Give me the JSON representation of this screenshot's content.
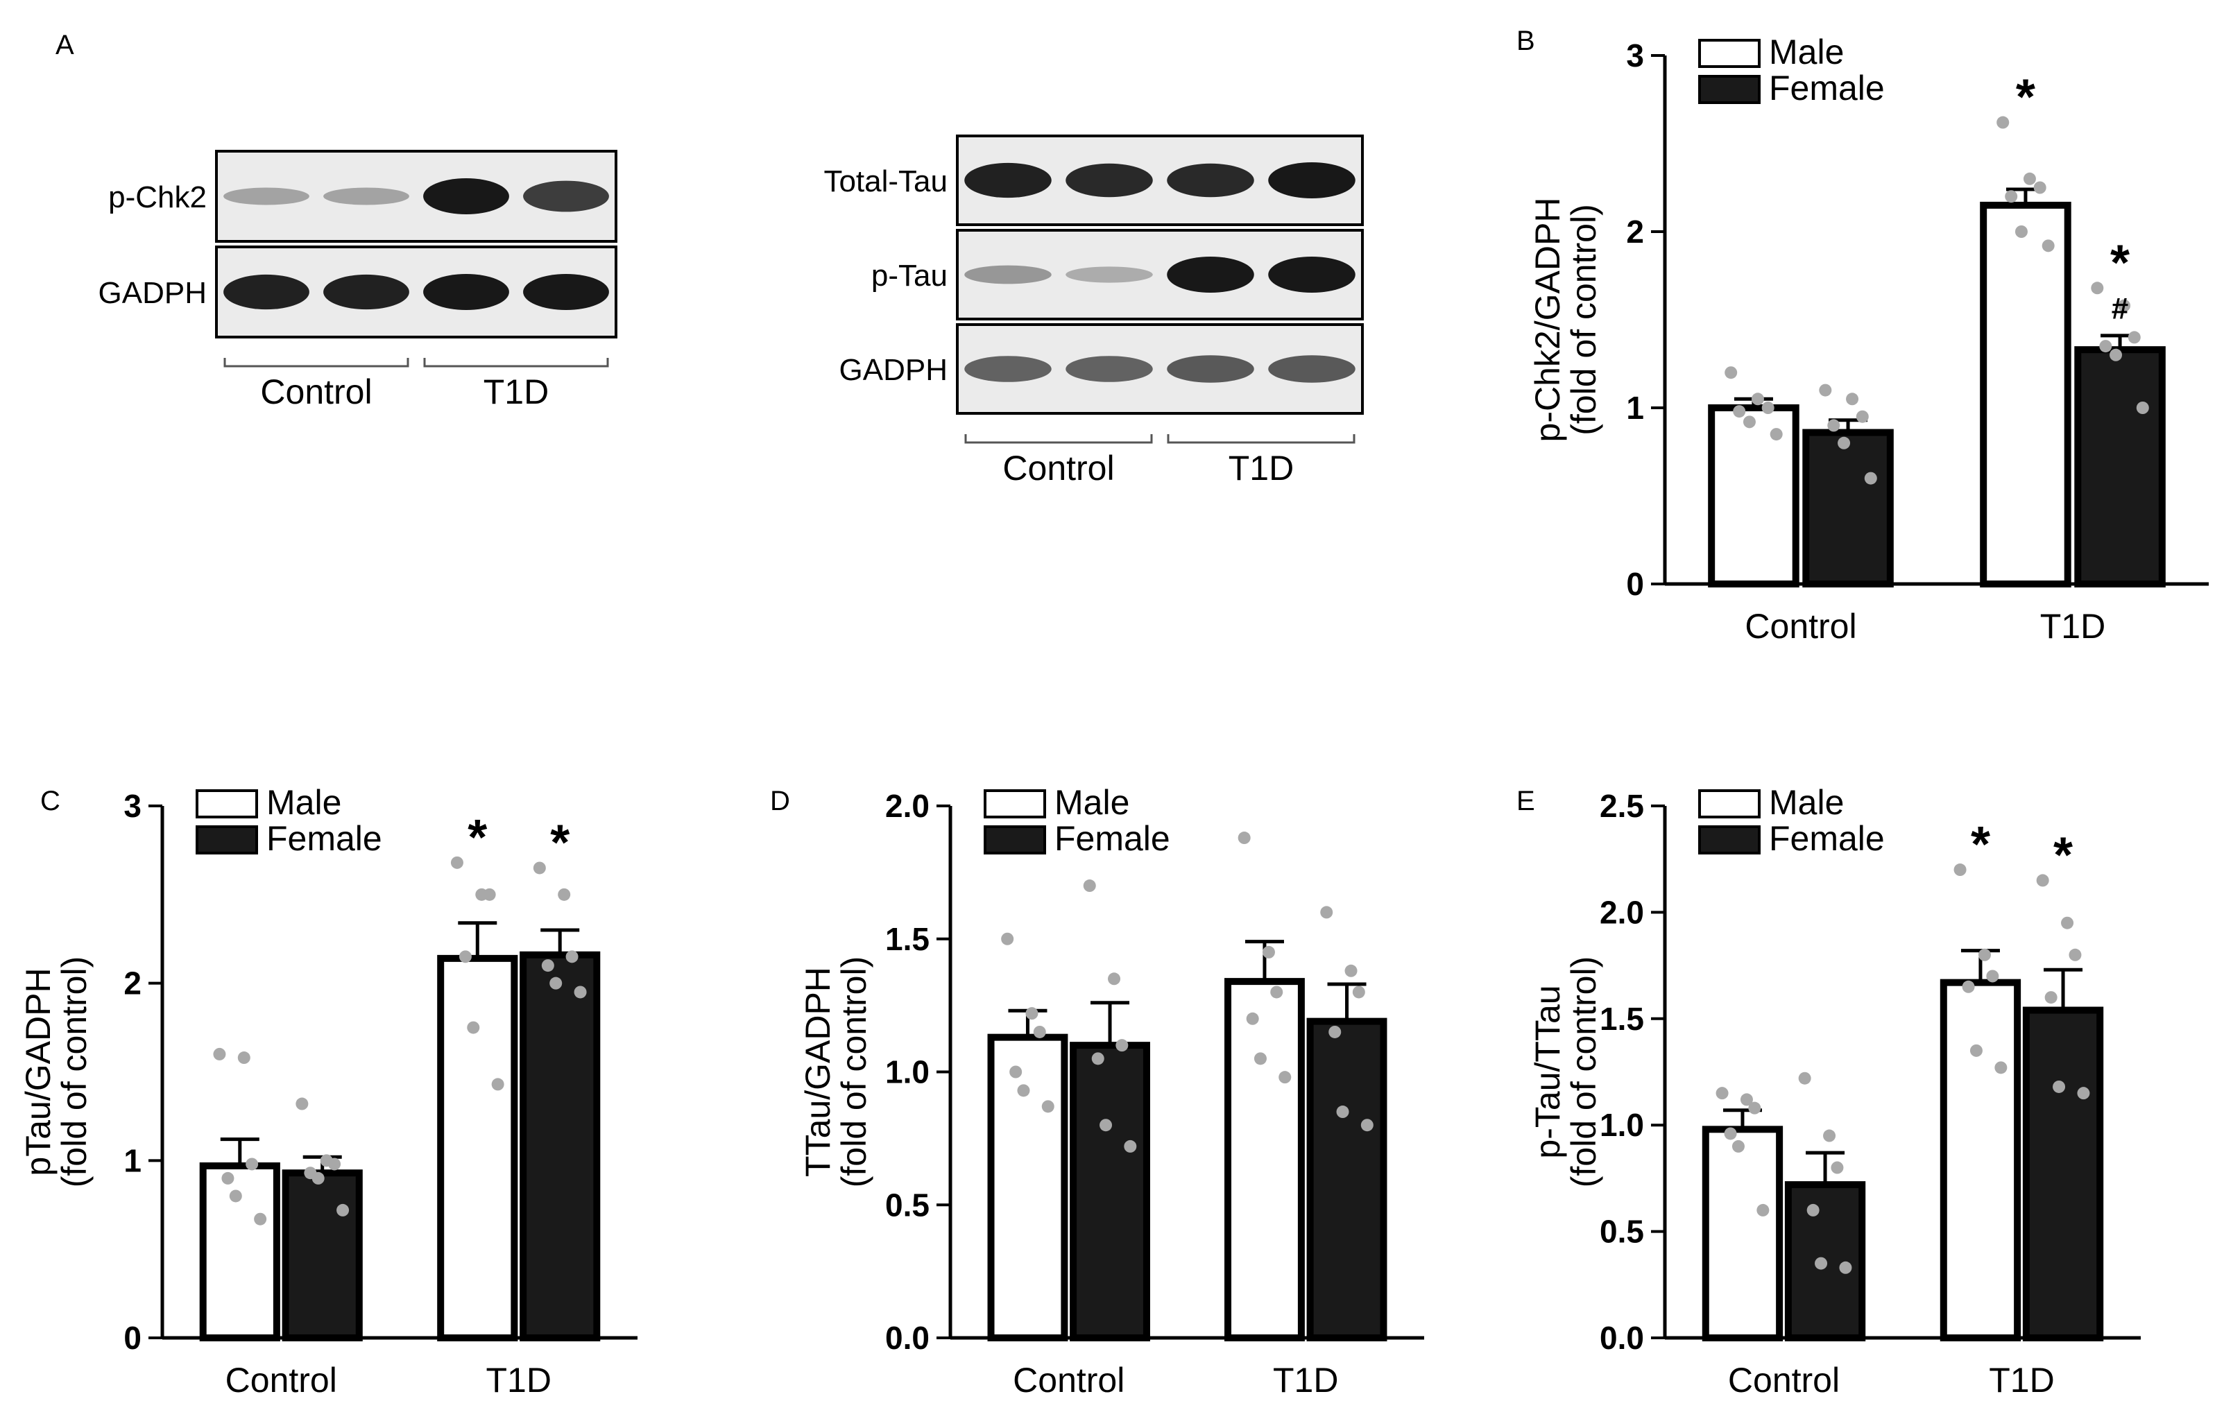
{
  "panel_a": {
    "letter": "A",
    "blot1": {
      "rows": [
        {
          "label": "p-Chk2",
          "intensities": [
            0.25,
            0.25,
            1.0,
            0.8
          ]
        },
        {
          "label": "GADPH",
          "intensities": [
            0.95,
            0.95,
            1.0,
            1.0
          ]
        }
      ],
      "groups": [
        "Control",
        "T1D"
      ]
    },
    "blot2": {
      "rows": [
        {
          "label": "Total-Tau",
          "intensities": [
            0.95,
            0.9,
            0.9,
            1.0
          ]
        },
        {
          "label": "p-Tau",
          "intensities": [
            0.3,
            0.2,
            1.0,
            1.0
          ]
        },
        {
          "label": "GADPH",
          "intensities": [
            0.6,
            0.6,
            0.65,
            0.65
          ]
        }
      ],
      "groups": [
        "Control",
        "T1D"
      ]
    }
  },
  "chart_data": [
    {
      "panel": "B",
      "type": "bar",
      "categories": [
        "Control",
        "T1D"
      ],
      "series": [
        {
          "name": "Male",
          "values": [
            1.0,
            2.15
          ],
          "errors": [
            0.05,
            0.09
          ],
          "points": [
            [
              1.2,
              1.05,
              1.0,
              0.98,
              0.92,
              0.85
            ],
            [
              2.62,
              2.3,
              2.25,
              2.2,
              2.0,
              1.92
            ]
          ]
        },
        {
          "name": "Female",
          "values": [
            0.86,
            1.33
          ],
          "errors": [
            0.07,
            0.08
          ],
          "points": [
            [
              1.1,
              1.05,
              0.95,
              0.9,
              0.8,
              0.6
            ],
            [
              1.68,
              1.58,
              1.4,
              1.35,
              1.3,
              1.0
            ]
          ]
        }
      ],
      "significance": [
        [
          "",
          ""
        ],
        [
          "*",
          "*\n#"
        ]
      ],
      "ylabel": "p-Chk2/GADPH\n(fold of control)",
      "ylim": [
        0,
        3
      ],
      "yticks": [
        "0",
        "1",
        "2",
        "3"
      ],
      "legend": "top-left",
      "grid": false
    },
    {
      "panel": "C",
      "type": "bar",
      "categories": [
        "Control",
        "T1D"
      ],
      "series": [
        {
          "name": "Male",
          "values": [
            0.97,
            2.14
          ],
          "errors": [
            0.15,
            0.2
          ],
          "points": [
            [
              1.6,
              1.58,
              0.98,
              0.9,
              0.8,
              0.67
            ],
            [
              2.68,
              2.5,
              2.5,
              2.15,
              1.75,
              1.43
            ]
          ]
        },
        {
          "name": "Female",
          "values": [
            0.93,
            2.16
          ],
          "errors": [
            0.09,
            0.14
          ],
          "points": [
            [
              1.32,
              1.0,
              0.98,
              0.93,
              0.9,
              0.72
            ],
            [
              2.65,
              2.5,
              2.15,
              2.1,
              2.0,
              1.95
            ]
          ]
        }
      ],
      "significance": [
        [
          "",
          ""
        ],
        [
          "*",
          "*"
        ]
      ],
      "ylabel": "pTau/GADPH\n(fold of control)",
      "ylim": [
        0,
        3
      ],
      "yticks": [
        "0",
        "1",
        "2",
        "3"
      ],
      "legend": "top-left",
      "grid": false
    },
    {
      "panel": "D",
      "type": "bar",
      "categories": [
        "Control",
        "T1D"
      ],
      "series": [
        {
          "name": "Male",
          "values": [
            1.13,
            1.34
          ],
          "errors": [
            0.1,
            0.15
          ],
          "points": [
            [
              1.5,
              1.22,
              1.15,
              1.0,
              0.93,
              0.87
            ],
            [
              1.88,
              1.45,
              1.3,
              1.2,
              1.05,
              0.98
            ]
          ]
        },
        {
          "name": "Female",
          "values": [
            1.1,
            1.19
          ],
          "errors": [
            0.16,
            0.14
          ],
          "points": [
            [
              1.7,
              1.35,
              1.1,
              1.05,
              0.8,
              0.72
            ],
            [
              1.6,
              1.38,
              1.3,
              1.15,
              0.85,
              0.8
            ]
          ]
        }
      ],
      "significance": [
        [
          "",
          ""
        ],
        [
          "",
          ""
        ]
      ],
      "ylabel": "TTau/GADPH\n(fold of control)",
      "ylim": [
        0,
        2.0
      ],
      "yticks": [
        "0.0",
        "0.5",
        "1.0",
        "1.5",
        "2.0"
      ],
      "legend": "top-left",
      "grid": false
    },
    {
      "panel": "E",
      "type": "bar",
      "categories": [
        "Control",
        "T1D"
      ],
      "series": [
        {
          "name": "Male",
          "values": [
            0.98,
            1.67
          ],
          "errors": [
            0.09,
            0.15
          ],
          "points": [
            [
              1.15,
              1.12,
              1.08,
              0.96,
              0.9,
              0.6
            ],
            [
              2.2,
              1.8,
              1.7,
              1.65,
              1.35,
              1.27
            ]
          ]
        },
        {
          "name": "Female",
          "values": [
            0.72,
            1.54
          ],
          "errors": [
            0.15,
            0.19
          ],
          "points": [
            [
              1.22,
              0.95,
              0.8,
              0.6,
              0.35,
              0.33
            ],
            [
              2.15,
              1.95,
              1.8,
              1.6,
              1.18,
              1.15
            ]
          ]
        }
      ],
      "significance": [
        [
          "",
          ""
        ],
        [
          "*",
          "*"
        ]
      ],
      "ylabel": "p-Tau/TTau\n(fold of control)",
      "ylim": [
        0,
        2.5
      ],
      "yticks": [
        "0.0",
        "0.5",
        "1.0",
        "1.5",
        "2.0",
        "2.5"
      ],
      "legend": "top-left",
      "grid": false
    }
  ],
  "colors": {
    "male_fill": "#ffffff",
    "female_fill": "#1a1a1a",
    "point": "#a8a8a8",
    "axis": "#000000"
  }
}
